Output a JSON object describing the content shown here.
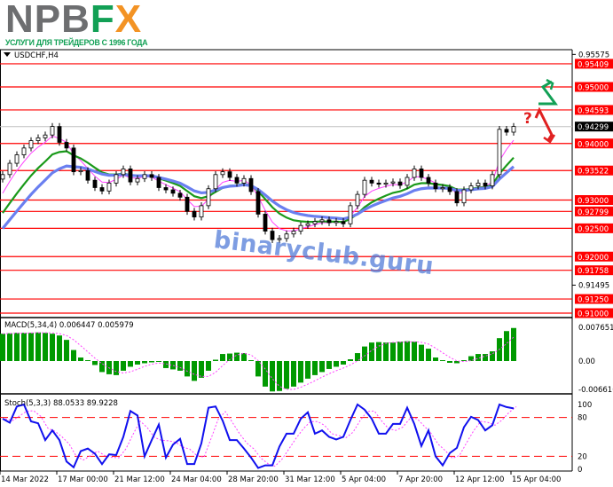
{
  "logo": {
    "brand_gray": "NPB",
    "brand_f": "F",
    "brand_x": "X",
    "tagline": "УСЛУГИ ДЛЯ ТРЕЙДЕРОВ С 1996 ГОДА"
  },
  "symbol": "USDCHF,H4",
  "watermark": "binaryclub.guru",
  "annotation_question": "?",
  "colors": {
    "level": "#ff0000",
    "bull_arrow": "#12a055",
    "bear_arrow": "#e02020",
    "ma_fast": "#ff40ff",
    "ma_mid": "#1a9a1a",
    "ma_slow": "#6a7ff0",
    "macd": "#009900",
    "stoch_main": "#1010ee",
    "stoch_signal": "#ff40ff"
  },
  "chart_data": [
    {
      "type": "candlestick",
      "title": "USDCHF,H4",
      "ylim": [
        0.91,
        0.95575
      ],
      "x_tick_labels": [
        "14 Mar 2022",
        "17 Mar 00:00",
        "21 Mar 12:00",
        "24 Mar 04:00",
        "28 Mar 20:00",
        "31 Mar 12:00",
        "5 Apr 04:00",
        "7 Apr 20:00",
        "12 Apr 12:00",
        "15 Apr 04:00"
      ],
      "close": [
        0.9345,
        0.9365,
        0.938,
        0.9392,
        0.9405,
        0.941,
        0.9415,
        0.943,
        0.9402,
        0.9392,
        0.935,
        0.9352,
        0.9335,
        0.9322,
        0.9316,
        0.933,
        0.9345,
        0.9355,
        0.9332,
        0.9338,
        0.9345,
        0.934,
        0.9322,
        0.9318,
        0.9312,
        0.9305,
        0.928,
        0.927,
        0.929,
        0.932,
        0.9345,
        0.935,
        0.934,
        0.933,
        0.9338,
        0.9315,
        0.9275,
        0.9245,
        0.923,
        0.9232,
        0.924,
        0.9245,
        0.9255,
        0.9258,
        0.9262,
        0.9265,
        0.926,
        0.9262,
        0.9258,
        0.929,
        0.931,
        0.9335,
        0.933,
        0.9328,
        0.933,
        0.9332,
        0.9326,
        0.934,
        0.9355,
        0.934,
        0.933,
        0.932,
        0.9322,
        0.9315,
        0.9295,
        0.9318,
        0.9325,
        0.933,
        0.9325,
        0.9345,
        0.9425,
        0.942,
        0.943
      ],
      "axis_ticks": [
        "0.95575",
        "0.91495"
      ],
      "levels": [
        "0.95409",
        "0.95000",
        "0.94593",
        "0.94000",
        "0.93522",
        "0.93000",
        "0.92799",
        "0.92500",
        "0.92000",
        "0.91758",
        "0.91250",
        "0.91000"
      ],
      "current_price": "0.94299",
      "grid": false
    },
    {
      "type": "bar",
      "title": "MACD(5,34,4) 0.006447 0.005979",
      "ylim": [
        -0.006616,
        0.007651
      ],
      "axis_ticks": [
        "0.007651",
        "0.00",
        "-0.006616"
      ],
      "values": [
        0.0062,
        0.0063,
        0.0064,
        0.0064,
        0.0064,
        0.0065,
        0.0064,
        0.0062,
        0.0058,
        0.0048,
        0.0025,
        0.0008,
        0.0002,
        -0.0009,
        -0.0025,
        -0.003,
        -0.0032,
        -0.0022,
        -0.0013,
        -0.0008,
        -0.0005,
        -0.0003,
        -0.0002,
        -0.0016,
        -0.0019,
        -0.0022,
        -0.0035,
        -0.0045,
        -0.0038,
        -0.0022,
        0.0003,
        0.0016,
        0.0017,
        0.0019,
        0.0018,
        0.0002,
        -0.0035,
        -0.0058,
        -0.0069,
        -0.0068,
        -0.0063,
        -0.0058,
        -0.0049,
        -0.004,
        -0.0032,
        -0.0025,
        -0.0018,
        -0.0013,
        -0.0008,
        0.0004,
        0.0018,
        0.0033,
        0.0042,
        0.0043,
        0.0042,
        0.0042,
        0.0044,
        0.0045,
        0.0044,
        0.0037,
        0.0028,
        0.0008,
        0.0002,
        -0.0004,
        -0.0005,
        0.0002,
        0.0011,
        0.0016,
        0.0016,
        0.0022,
        0.0052,
        0.0068,
        0.0075
      ]
    },
    {
      "type": "line",
      "title": "Stoch(5,3,3) 88.0533 89.9228",
      "ylim": [
        0,
        100
      ],
      "axis_ticks": [
        "100",
        "80",
        "20",
        "0"
      ],
      "levels": [
        80,
        20
      ],
      "values": [
        78,
        72,
        97,
        100,
        74,
        71,
        45,
        60,
        45,
        12,
        3,
        28,
        32,
        24,
        8,
        23,
        22,
        50,
        90,
        83,
        20,
        45,
        69,
        18,
        38,
        47,
        8,
        8,
        40,
        95,
        97,
        75,
        45,
        45,
        32,
        18,
        2,
        6,
        6,
        35,
        55,
        55,
        78,
        88,
        55,
        60,
        50,
        46,
        50,
        76,
        100,
        92,
        78,
        55,
        55,
        70,
        70,
        95,
        70,
        36,
        60,
        20,
        6,
        25,
        33,
        65,
        81,
        76,
        60,
        68,
        100,
        96,
        94
      ]
    }
  ]
}
